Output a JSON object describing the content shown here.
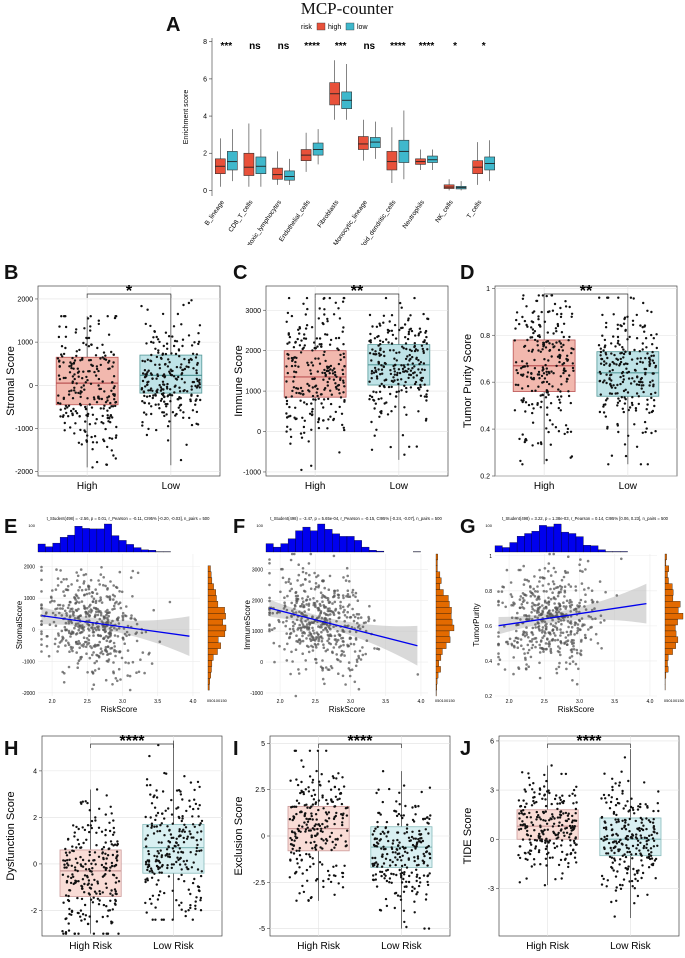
{
  "colors": {
    "high": "#e8513a",
    "low": "#3fb8cc",
    "high_light": "#f2b8ae",
    "low_light": "#bfe3e7",
    "hist_top": "#0000ee",
    "hist_right": "#e36a00",
    "line": "#0000ee"
  },
  "chart_data": [
    {
      "id": "A",
      "type": "box",
      "title": "MCP-counter",
      "legend": {
        "title": "risk",
        "items": [
          "high",
          "low"
        ],
        "placement": "top"
      },
      "ylabel": "Enrichment score",
      "ylim": [
        -0.3,
        8.2
      ],
      "yticks": [
        0,
        2,
        4,
        6,
        8
      ],
      "categories": [
        "B_lineage",
        "CD8_T_cells",
        "Cytotoxic_lymphocytes",
        "Endothelial_cells",
        "Fibroblasts",
        "Monocytic_lineage",
        "Myeloid_dendritic_cells",
        "Neutrophils",
        "NK_cells",
        "T_cells"
      ],
      "significance": [
        "***",
        "ns",
        "ns",
        "****",
        "***",
        "ns",
        "****",
        "****",
        "*",
        "*"
      ],
      "series": [
        {
          "name": "high",
          "stats": [
            [
              0.2,
              0.9,
              1.3,
              1.7,
              2.8
            ],
            [
              0.2,
              0.8,
              1.25,
              2.0,
              3.6
            ],
            [
              0.3,
              0.6,
              0.85,
              1.2,
              2.1
            ],
            [
              1.0,
              1.6,
              1.9,
              2.2,
              3.1
            ],
            [
              3.8,
              4.6,
              5.2,
              5.8,
              7.0
            ],
            [
              1.6,
              2.2,
              2.5,
              2.9,
              3.8
            ],
            [
              0.4,
              1.1,
              1.55,
              2.1,
              3.4
            ],
            [
              1.1,
              1.4,
              1.55,
              1.7,
              2.2
            ],
            [
              0.0,
              0.1,
              0.18,
              0.3,
              0.6
            ],
            [
              0.3,
              0.9,
              1.25,
              1.6,
              2.6
            ]
          ]
        },
        {
          "name": "low",
          "stats": [
            [
              0.5,
              1.1,
              1.55,
              2.1,
              3.3
            ],
            [
              0.2,
              0.9,
              1.3,
              1.8,
              3.3
            ],
            [
              0.3,
              0.55,
              0.75,
              1.05,
              1.7
            ],
            [
              1.4,
              1.9,
              2.2,
              2.55,
              3.3
            ],
            [
              3.8,
              4.4,
              4.85,
              5.3,
              6.8
            ],
            [
              1.7,
              2.3,
              2.6,
              2.85,
              3.7
            ],
            [
              0.6,
              1.5,
              2.1,
              2.7,
              4.3
            ],
            [
              1.1,
              1.5,
              1.65,
              1.85,
              2.2
            ],
            [
              0.0,
              0.08,
              0.15,
              0.22,
              0.5
            ],
            [
              0.5,
              1.1,
              1.45,
              1.8,
              2.7
            ]
          ]
        }
      ]
    },
    {
      "id": "B",
      "type": "boxjitter",
      "ylabel": "Stromal Score",
      "ylim": [
        -2100,
        2300
      ],
      "yticks": [
        -2000,
        -1000,
        0,
        1000,
        2000
      ],
      "categories": [
        "High",
        "Low"
      ],
      "significance": "*",
      "stats": [
        [
          -1900,
          -450,
          50,
          650,
          1600
        ],
        [
          -1850,
          -180,
          230,
          700,
          2100
        ]
      ],
      "n": 250,
      "style": "light"
    },
    {
      "id": "C",
      "type": "boxjitter",
      "ylabel": "Immune  Score",
      "ylim": [
        -1100,
        3600
      ],
      "yticks": [
        -1000,
        0,
        1000,
        2000,
        3000
      ],
      "categories": [
        "High",
        "Low"
      ],
      "significance": "**",
      "stats": [
        [
          -950,
          850,
          1350,
          2000,
          3300
        ],
        [
          -700,
          1150,
          1650,
          2150,
          3300
        ]
      ],
      "n": 250,
      "style": "light"
    },
    {
      "id": "D",
      "type": "boxjitter",
      "ylabel": "Tumor Purity Score",
      "ylim": [
        0.2,
        1.01
      ],
      "yticks": [
        0.2,
        0.4,
        0.6,
        0.8,
        1.0
      ],
      "categories": [
        "High",
        "Low"
      ],
      "significance": "**",
      "stats": [
        [
          0.25,
          0.56,
          0.67,
          0.78,
          0.97
        ],
        [
          0.25,
          0.54,
          0.64,
          0.73,
          0.96
        ]
      ],
      "n": 250,
      "style": "light"
    },
    {
      "id": "E",
      "type": "scatter",
      "xlabel": "RiskScore",
      "ylabel": "StromalScore",
      "stats_text": "t_Student(498) = -2.56, p = 0.01, r_Pearson = -0.11, CI95% [-0.20, -0.03], n_pairs = 500",
      "xlim": [
        1.8,
        4.1
      ],
      "ylim": [
        -2100,
        2400
      ],
      "xticks": [
        2.0,
        2.5,
        3.0,
        3.5,
        4.0
      ],
      "yticks": [
        -2000,
        -1000,
        0,
        1000,
        2000
      ],
      "fit": {
        "slope": -310,
        "intercept": 1020
      },
      "xmean": 2.55,
      "xsd": 0.35,
      "ymean": 230,
      "ysd": 780,
      "n": 500,
      "hist_top_tick": "100",
      "hist_right_ticks": [
        "0",
        "50100150"
      ]
    },
    {
      "id": "F",
      "type": "scatter",
      "xlabel": "RiskScore",
      "ylabel": "ImmuneScore",
      "stats_text": "t_Student(498) = -3.47, p = 5.65e-04, r_Pearson = -0.15, CI95% [-0.24, -0.07], n_pairs = 500",
      "xlim": [
        1.8,
        4.1
      ],
      "ylim": [
        -1100,
        3500
      ],
      "xticks": [
        2.0,
        2.5,
        3.0,
        3.5,
        4.0
      ],
      "yticks": [
        -1000,
        0,
        1000,
        2000,
        3000
      ],
      "fit": {
        "slope": -580,
        "intercept": 2820
      },
      "xmean": 2.55,
      "xsd": 0.35,
      "ymean": 1450,
      "ysd": 820,
      "n": 500,
      "hist_top_tick": "100",
      "hist_right_ticks": [
        "0",
        "50100150"
      ]
    },
    {
      "id": "G",
      "type": "scatter",
      "xlabel": "RiskScore",
      "ylabel": "TumorPurity",
      "stats_text": "t_Student(498) = 3.22, p = 1.38e-03, r_Pearson = 0.14, CI95% [0.06, 0.23], n_pairs = 500",
      "xlim": [
        1.8,
        4.1
      ],
      "ylim": [
        0.2,
        1.01
      ],
      "xticks": [
        2.0,
        2.5,
        3.0,
        3.5,
        4.0
      ],
      "yticks": [
        0.2,
        0.4,
        0.6,
        0.8,
        1.0
      ],
      "fit": {
        "slope": 0.06,
        "intercept": 0.49
      },
      "xmean": 2.55,
      "xsd": 0.35,
      "ymean": 0.65,
      "ysd": 0.14,
      "n": 500,
      "hist_top_tick": "100",
      "hist_right_ticks": [
        "0",
        "50100150"
      ]
    },
    {
      "id": "H",
      "type": "boxjitter",
      "ylabel": "Dysfunction Score",
      "ylim": [
        -3.1,
        5.5
      ],
      "yticks": [
        -2,
        0,
        2,
        4
      ],
      "categories": [
        "High Risk",
        "Low Risk"
      ],
      "significance": "****",
      "stats": [
        [
          -3.0,
          -1.4,
          -0.3,
          0.6,
          3.2
        ],
        [
          -2.4,
          -0.4,
          0.7,
          1.7,
          5.3
        ]
      ],
      "n": 250,
      "style": "pale"
    },
    {
      "id": "I",
      "type": "boxjitter",
      "ylabel": "Exclusion Score",
      "ylim": [
        -5.4,
        5.4
      ],
      "yticks": [
        -5.0,
        -2.5,
        0.0,
        2.5,
        5.0
      ],
      "categories": [
        "High Risk",
        "Low Risk"
      ],
      "significance": "****",
      "stats": [
        [
          -3.5,
          -0.8,
          0.4,
          1.6,
          4.6
        ],
        [
          -5.0,
          -1.7,
          -0.6,
          0.5,
          3.5
        ]
      ],
      "n": 250,
      "style": "pale"
    },
    {
      "id": "J",
      "type": "boxjitter",
      "ylabel": "TIDE Score",
      "ylim": [
        -5.9,
        6.3
      ],
      "yticks": [
        -3,
        0,
        3,
        6
      ],
      "categories": [
        "High Risk",
        "Low Risk"
      ],
      "significance": "****",
      "stats": [
        [
          -2.8,
          0.0,
          0.8,
          1.8,
          4.5
        ],
        [
          -4.8,
          -1.0,
          0.0,
          1.3,
          5.5
        ]
      ],
      "n": 250,
      "style": "pale"
    }
  ]
}
